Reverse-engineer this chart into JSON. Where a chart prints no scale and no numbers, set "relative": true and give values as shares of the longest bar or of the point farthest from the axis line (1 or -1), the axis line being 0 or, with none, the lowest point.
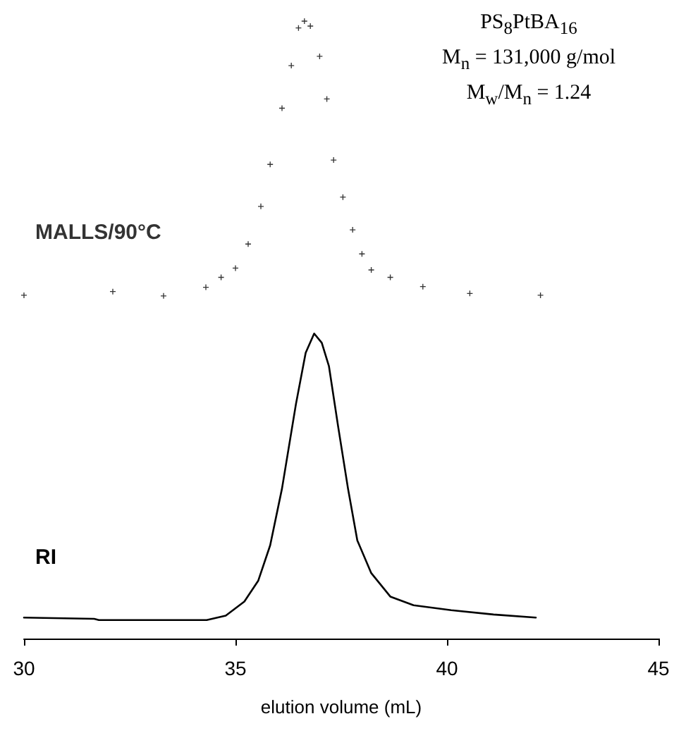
{
  "chart_data": {
    "type": "line",
    "relative": true,
    "xlabel": "elution volume (mL)",
    "xlim": [
      30,
      45
    ],
    "xticks": [
      30,
      35,
      40,
      45
    ],
    "annotations": [
      "PS$_{8}$PtBA$_{16}$",
      "M$_{n}$ = 131,000 g/mol",
      "M$_{w}$/M$_{n}$ = 1.24"
    ],
    "series": [
      {
        "name": "MALLS/90°C",
        "type": "scatter",
        "marker": "cross",
        "color": "#000000",
        "x": [
          30.0,
          32.1,
          33.3,
          34.3,
          34.66,
          35.0,
          35.3,
          35.6,
          35.82,
          36.1,
          36.32,
          36.49,
          36.63,
          36.77,
          36.99,
          37.16,
          37.32,
          37.54,
          37.77,
          37.99,
          38.21,
          38.66,
          39.43,
          40.54,
          42.21
        ],
        "values": [
          0.556,
          0.562,
          0.555,
          0.569,
          0.585,
          0.6,
          0.639,
          0.7,
          0.768,
          0.859,
          0.928,
          0.989,
          1.0,
          0.992,
          0.943,
          0.874,
          0.775,
          0.715,
          0.662,
          0.623,
          0.597,
          0.585,
          0.57,
          0.559,
          0.556
        ]
      },
      {
        "name": "RI",
        "line_style": "solid",
        "color": "#000000",
        "x": [
          30.0,
          31.66,
          31.77,
          34.32,
          34.77,
          35.21,
          35.54,
          35.82,
          36.1,
          36.43,
          36.66,
          36.86,
          37.04,
          37.21,
          37.43,
          37.66,
          37.88,
          38.21,
          38.66,
          39.21,
          40.1,
          41.1,
          42.1
        ],
        "values": [
          0.034,
          0.032,
          0.03,
          0.03,
          0.037,
          0.06,
          0.094,
          0.151,
          0.243,
          0.38,
          0.463,
          0.494,
          0.479,
          0.441,
          0.342,
          0.243,
          0.159,
          0.106,
          0.068,
          0.054,
          0.046,
          0.039,
          0.034
        ]
      }
    ]
  }
}
